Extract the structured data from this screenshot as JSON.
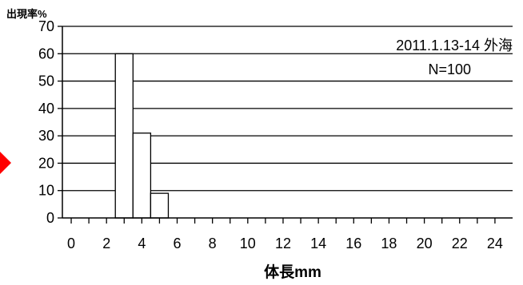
{
  "chart_data": {
    "type": "bar",
    "ylabel": "出現率%",
    "xlabel": "体長mm",
    "annotation": "2011.1.13-14 外海",
    "sample_size": "N=100",
    "x": [
      3,
      4,
      5
    ],
    "values": [
      60,
      31,
      9
    ],
    "xlim": [
      -0.5,
      25
    ],
    "ylim": [
      0,
      70
    ],
    "yticks": [
      0,
      10,
      20,
      30,
      40,
      50,
      60,
      70
    ],
    "xtick_labels": [
      "0",
      "2",
      "4",
      "6",
      "8",
      "10",
      "12",
      "14",
      "16",
      "18",
      "20",
      "22",
      "24"
    ],
    "grid": "horizontal",
    "bar_fill": "#ffffff",
    "bar_stroke": "#000000",
    "marker_color": "#ff0000"
  }
}
